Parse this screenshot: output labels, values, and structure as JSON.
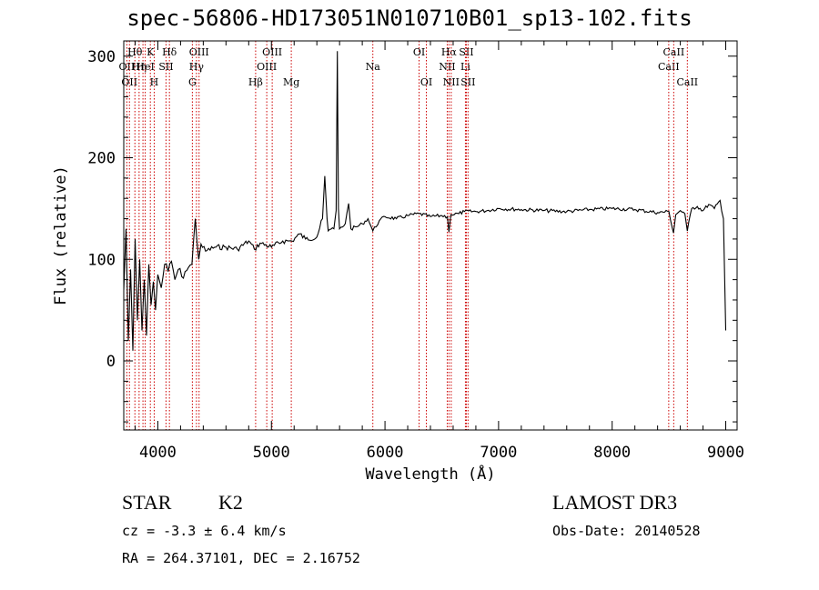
{
  "title": "spec-56806-HD173051N010710B01_sp13-102.fits",
  "info": {
    "object_class": "STAR",
    "subclass": "K2",
    "survey": "LAMOST DR3",
    "cz": "cz = -3.3 ± 6.4 km/s",
    "obs_date": "Obs-Date: 20140528",
    "coords": "RA = 264.37101, DEC =   2.16752"
  },
  "chart_data": {
    "type": "line",
    "title": "spec-56806-HD173051N010710B01_sp13-102.fits",
    "xlabel": "Wavelength (Å)",
    "ylabel": "Flux (relative)",
    "xlim": [
      3700,
      9100
    ],
    "ylim": [
      -68,
      315
    ],
    "x_ticks": [
      4000,
      5000,
      6000,
      7000,
      8000,
      9000
    ],
    "y_ticks": [
      0,
      100,
      200,
      300
    ],
    "line_color": "#000000",
    "marker_color": "#cc0000",
    "spectrum": {
      "x": [
        3700,
        3720,
        3740,
        3760,
        3780,
        3800,
        3820,
        3840,
        3860,
        3880,
        3900,
        3920,
        3940,
        3960,
        3980,
        4000,
        4030,
        4060,
        4090,
        4120,
        4150,
        4180,
        4210,
        4240,
        4270,
        4300,
        4330,
        4360,
        4380,
        4420,
        4500,
        4600,
        4700,
        4800,
        4850,
        4900,
        5000,
        5100,
        5180,
        5250,
        5300,
        5400,
        5450,
        5470,
        5490,
        5500,
        5550,
        5570,
        5580,
        5590,
        5600,
        5650,
        5680,
        5700,
        5750,
        5800,
        5850,
        5893,
        5950,
        6000,
        6100,
        6200,
        6300,
        6400,
        6500,
        6550,
        6563,
        6580,
        6650,
        6700,
        6800,
        6900,
        7000,
        7200,
        7400,
        7600,
        7800,
        8000,
        8200,
        8400,
        8500,
        8540,
        8560,
        8600,
        8640,
        8662,
        8700,
        8750,
        8800,
        8850,
        8900,
        8950,
        8980,
        9000
      ],
      "y": [
        70,
        130,
        20,
        90,
        10,
        120,
        40,
        100,
        30,
        80,
        25,
        95,
        55,
        78,
        50,
        85,
        72,
        95,
        88,
        98,
        80,
        90,
        83,
        88,
        92,
        95,
        140,
        100,
        115,
        108,
        112,
        112,
        110,
        118,
        110,
        116,
        112,
        118,
        118,
        125,
        120,
        122,
        140,
        182,
        140,
        128,
        130,
        148,
        305,
        150,
        130,
        135,
        155,
        130,
        132,
        135,
        140,
        128,
        138,
        142,
        140,
        143,
        145,
        142,
        143,
        142,
        127,
        144,
        145,
        147,
        147,
        148,
        150,
        149,
        148,
        147,
        149,
        150,
        149,
        146,
        147,
        126,
        144,
        148,
        145,
        128,
        150,
        152,
        148,
        154,
        150,
        158,
        140,
        30
      ]
    },
    "lines": [
      {
        "wave": 3727,
        "label": "OII",
        "row": 2
      },
      {
        "wave": 3750,
        "label": "OII",
        "row": 3
      },
      {
        "wave": 3798,
        "label": "Hθ",
        "row": 1
      },
      {
        "wave": 3835,
        "label": "Hη",
        "row": 2
      },
      {
        "wave": 3869,
        "label": "",
        "row": 0
      },
      {
        "wave": 3889,
        "label": "HeI",
        "row": 2
      },
      {
        "wave": 3934,
        "label": "K",
        "row": 1
      },
      {
        "wave": 3968,
        "label": "H",
        "row": 3
      },
      {
        "wave": 4072,
        "label": "SII",
        "row": 2
      },
      {
        "wave": 4102,
        "label": "Hδ",
        "row": 1
      },
      {
        "wave": 4304,
        "label": "G",
        "row": 3
      },
      {
        "wave": 4340,
        "label": "Hγ",
        "row": 2
      },
      {
        "wave": 4363,
        "label": "OIII",
        "row": 1
      },
      {
        "wave": 4861,
        "label": "Hβ",
        "row": 3
      },
      {
        "wave": 4959,
        "label": "OIII",
        "row": 2
      },
      {
        "wave": 5007,
        "label": "OIII",
        "row": 1
      },
      {
        "wave": 5175,
        "label": "Mg",
        "row": 3
      },
      {
        "wave": 5893,
        "label": "Na",
        "row": 2
      },
      {
        "wave": 6300,
        "label": "OI",
        "row": 1
      },
      {
        "wave": 6364,
        "label": "OI",
        "row": 3
      },
      {
        "wave": 6548,
        "label": "NII",
        "row": 2
      },
      {
        "wave": 6563,
        "label": "Hα",
        "row": 1
      },
      {
        "wave": 6583,
        "label": "NII",
        "row": 3
      },
      {
        "wave": 6708,
        "label": "Li",
        "row": 2
      },
      {
        "wave": 6716,
        "label": "SII",
        "row": 1
      },
      {
        "wave": 6731,
        "label": "SII",
        "row": 3
      },
      {
        "wave": 8498,
        "label": "CaII",
        "row": 2
      },
      {
        "wave": 8542,
        "label": "CaII",
        "row": 1
      },
      {
        "wave": 8662,
        "label": "CaII",
        "row": 3
      }
    ]
  }
}
